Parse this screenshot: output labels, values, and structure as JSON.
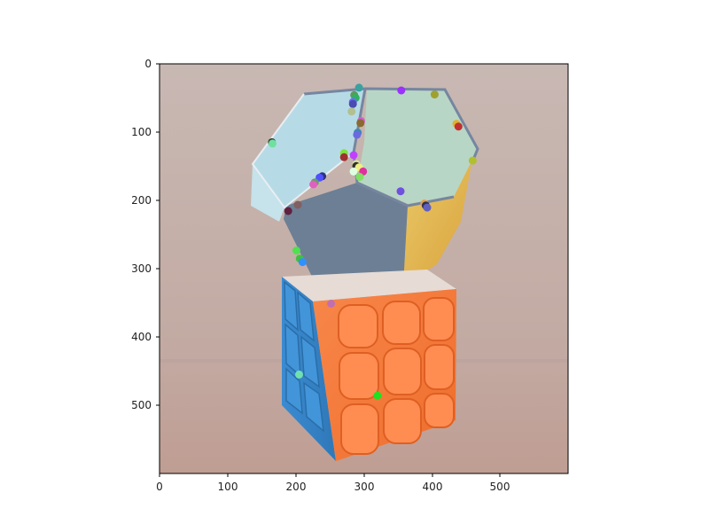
{
  "figure": {
    "x_ticks": [
      "0",
      "100",
      "200",
      "300",
      "400",
      "500"
    ],
    "y_ticks": [
      "0",
      "100",
      "200",
      "300",
      "400",
      "500"
    ]
  },
  "scene": {
    "colors": {
      "background_top": "#c6b5b0",
      "background_bottom": "#c09c92",
      "table_line": "#b8a09a",
      "dodeca_front": "#6b7d92",
      "dodeca_left": "#b8dbe6",
      "dodeca_right": "#b9d6c6",
      "dodeca_yellow": "#e5b64a",
      "dodeca_edge": "#7d8ba4",
      "cube_orange": "#f47a36",
      "cube_orange_dark": "#d9601e",
      "cube_blue": "#3d86c7",
      "cube_top": "#e8dcd6"
    }
  },
  "keypoints": [
    {
      "x": 293,
      "y": 35,
      "color": "#3aa0a0"
    },
    {
      "x": 355,
      "y": 39,
      "color": "#9b30ff"
    },
    {
      "x": 404,
      "y": 45,
      "color": "#a0a030"
    },
    {
      "x": 286,
      "y": 46,
      "color": "#5a9a5a"
    },
    {
      "x": 288,
      "y": 50,
      "color": "#30b060"
    },
    {
      "x": 284,
      "y": 56,
      "color": "#6a6aff"
    },
    {
      "x": 284,
      "y": 59,
      "color": "#4a4ab0"
    },
    {
      "x": 282,
      "y": 70,
      "color": "#b0c090"
    },
    {
      "x": 296,
      "y": 84,
      "color": "#d060d0"
    },
    {
      "x": 295,
      "y": 87,
      "color": "#8a6a30"
    },
    {
      "x": 436,
      "y": 88,
      "color": "#e0b030"
    },
    {
      "x": 439,
      "y": 92,
      "color": "#c03030"
    },
    {
      "x": 291,
      "y": 101,
      "color": "#3a8ab0"
    },
    {
      "x": 290,
      "y": 104,
      "color": "#6a6ae0"
    },
    {
      "x": 165,
      "y": 115,
      "color": "#304030"
    },
    {
      "x": 166,
      "y": 117,
      "color": "#70e0a0"
    },
    {
      "x": 271,
      "y": 131,
      "color": "#80e040"
    },
    {
      "x": 285,
      "y": 134,
      "color": "#c040ff"
    },
    {
      "x": 271,
      "y": 137,
      "color": "#a03030"
    },
    {
      "x": 460,
      "y": 142,
      "color": "#b0c030"
    },
    {
      "x": 289,
      "y": 147,
      "color": "#e0e0a0"
    },
    {
      "x": 289,
      "y": 150,
      "color": "#303030"
    },
    {
      "x": 293,
      "y": 152,
      "color": "#f0f080"
    },
    {
      "x": 285,
      "y": 158,
      "color": "#e0ffe0"
    },
    {
      "x": 299,
      "y": 158,
      "color": "#e030a0"
    },
    {
      "x": 294,
      "y": 166,
      "color": "#80e060"
    },
    {
      "x": 239,
      "y": 165,
      "color": "#303080"
    },
    {
      "x": 235,
      "y": 167,
      "color": "#5050ff"
    },
    {
      "x": 228,
      "y": 174,
      "color": "#60a060"
    },
    {
      "x": 226,
      "y": 177,
      "color": "#e060c0"
    },
    {
      "x": 354,
      "y": 187,
      "color": "#7050e0"
    },
    {
      "x": 389,
      "y": 205,
      "color": "#e0a050"
    },
    {
      "x": 391,
      "y": 208,
      "color": "#303050"
    },
    {
      "x": 393,
      "y": 211,
      "color": "#6060c0"
    },
    {
      "x": 203,
      "y": 207,
      "color": "#806060"
    },
    {
      "x": 189,
      "y": 216,
      "color": "#602040"
    },
    {
      "x": 201,
      "y": 274,
      "color": "#50e050"
    },
    {
      "x": 206,
      "y": 286,
      "color": "#40c040"
    },
    {
      "x": 210,
      "y": 291,
      "color": "#3090ff"
    },
    {
      "x": 252,
      "y": 352,
      "color": "#c070b0"
    },
    {
      "x": 205,
      "y": 456,
      "color": "#70e0b0"
    },
    {
      "x": 320,
      "y": 487,
      "color": "#20e020"
    }
  ]
}
